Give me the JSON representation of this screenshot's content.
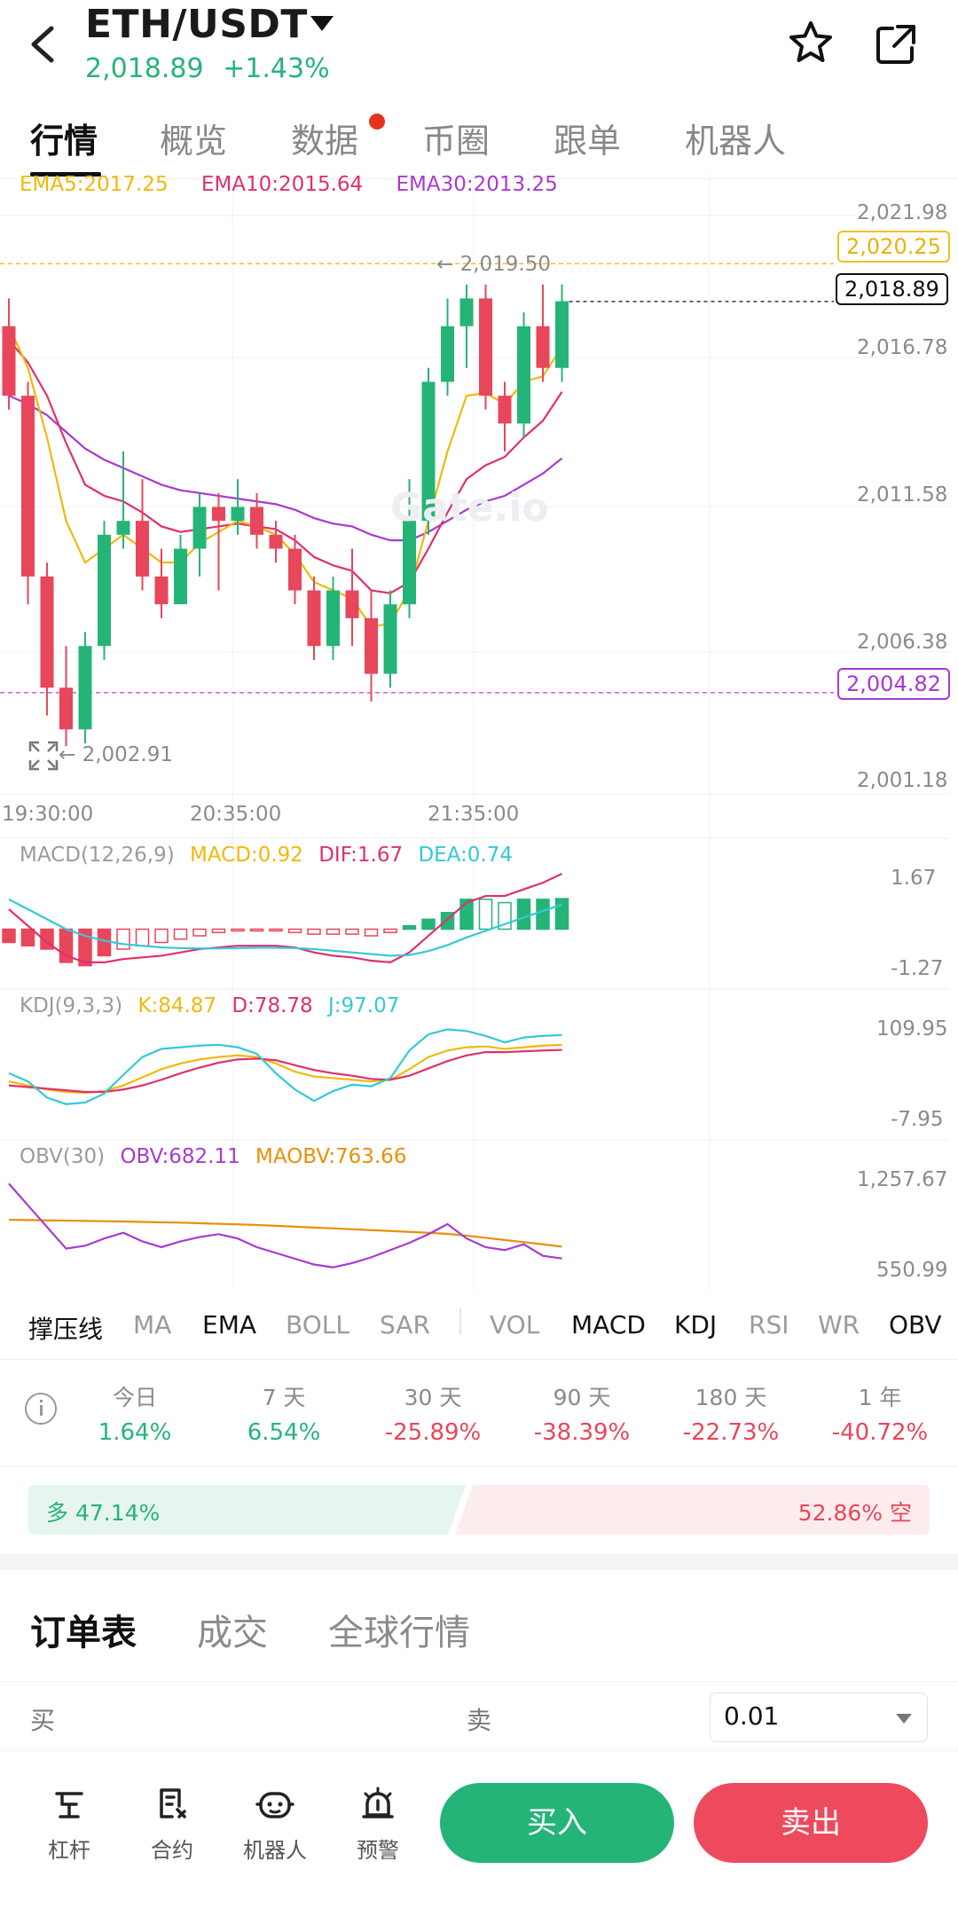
{
  "header": {
    "pair": "ETH/USDT",
    "price": "2,018.89",
    "change": "+1.43%"
  },
  "tabs": [
    {
      "label": "行情",
      "active": true
    },
    {
      "label": "概览"
    },
    {
      "label": "数据",
      "badge": true
    },
    {
      "label": "币圈"
    },
    {
      "label": "跟单"
    },
    {
      "label": "机器人"
    }
  ],
  "ema_legend": {
    "ema5": "EMA5:2017.25",
    "ema10": "EMA10:2015.64",
    "ema30": "EMA30:2013.25"
  },
  "price_axis": [
    "2,021.98",
    "2,016.78",
    "2,011.58",
    "2,006.38",
    "2,001.18"
  ],
  "tags": {
    "alert_high": "2,020.25",
    "last": "2,018.89",
    "alert_low": "2,004.82",
    "high_marker": "← 2,019.50",
    "low_marker": "← 2,002.91"
  },
  "time_axis": [
    "19:30:00",
    "20:35:00",
    "21:35:00"
  ],
  "watermark": "Gate.io",
  "macd": {
    "label": "MACD(12,26,9)",
    "macd": "MACD:0.92",
    "dif": "DIF:1.67",
    "dea": "DEA:0.74",
    "top": "1.67",
    "bottom": "-1.27"
  },
  "kdj": {
    "label": "KDJ(9,3,3)",
    "k": "K:84.87",
    "d": "D:78.78",
    "j": "J:97.07",
    "top": "109.95",
    "bottom": "-7.95"
  },
  "obv": {
    "label": "OBV(30)",
    "obv": "OBV:682.11",
    "maobv": "MAOBV:763.66",
    "top": "1,257.67",
    "bottom": "550.99"
  },
  "indicators": [
    {
      "label": "撑压线",
      "on": true
    },
    {
      "label": "MA"
    },
    {
      "label": "EMA",
      "on": true
    },
    {
      "label": "BOLL"
    },
    {
      "label": "SAR"
    },
    {
      "label": "VOL"
    },
    {
      "label": "MACD",
      "on": true
    },
    {
      "label": "KDJ",
      "on": true
    },
    {
      "label": "RSI"
    },
    {
      "label": "WR"
    },
    {
      "label": "OBV",
      "on": true
    }
  ],
  "stats": [
    {
      "period": "今日",
      "value": "1.64%",
      "up": true
    },
    {
      "period": "7 天",
      "value": "6.54%",
      "up": true
    },
    {
      "period": "30 天",
      "value": "-25.89%"
    },
    {
      "period": "90 天",
      "value": "-38.39%"
    },
    {
      "period": "180 天",
      "value": "-22.73%"
    },
    {
      "period": "1 年",
      "value": "-40.72%"
    }
  ],
  "long_short": {
    "long": "多 47.14%",
    "short": "52.86% 空",
    "long_pct": 47.14
  },
  "order_tabs": [
    "订单表",
    "成交",
    "全球行情"
  ],
  "orderbook": {
    "buy": "买",
    "sell": "卖",
    "precision": "0.01"
  },
  "bottom_bar": {
    "leverage": "杠杆",
    "contract": "合约",
    "robot": "机器人",
    "alert": "预警",
    "buy": "买入",
    "sell": "卖出"
  },
  "colors": {
    "up": "#25b478",
    "down": "#e8465a",
    "ema5": "#f0b90b",
    "ema10": "#e0306e",
    "ema30": "#a83ad0",
    "dea": "#33c9d6"
  },
  "chart_data": {
    "type": "candlestick",
    "x_labels": [
      "19:30:00",
      "20:35:00",
      "21:35:00"
    ],
    "ylim": [
      2001.18,
      2021.98
    ],
    "candles": [
      [
        2018.0,
        2019.0,
        2015.0,
        2015.5
      ],
      [
        2015.5,
        2016.0,
        2008.0,
        2009.0
      ],
      [
        2009.0,
        2009.5,
        2004.0,
        2005.0
      ],
      [
        2005.0,
        2006.5,
        2002.9,
        2003.5
      ],
      [
        2003.5,
        2007.0,
        2003.0,
        2006.5
      ],
      [
        2006.5,
        2011.0,
        2006.0,
        2010.5
      ],
      [
        2010.5,
        2013.5,
        2010.0,
        2011.0
      ],
      [
        2011.0,
        2012.5,
        2008.5,
        2009.0
      ],
      [
        2009.0,
        2010.0,
        2007.5,
        2008.0
      ],
      [
        2008.0,
        2010.5,
        2008.0,
        2010.0
      ],
      [
        2010.0,
        2012.0,
        2009.0,
        2011.5
      ],
      [
        2011.5,
        2012.0,
        2008.5,
        2011.0
      ],
      [
        2011.0,
        2012.5,
        2010.5,
        2011.5
      ],
      [
        2011.5,
        2012.0,
        2010.0,
        2010.5
      ],
      [
        2010.5,
        2011.0,
        2009.5,
        2010.0
      ],
      [
        2010.0,
        2010.5,
        2008.0,
        2008.5
      ],
      [
        2008.5,
        2009.0,
        2006.0,
        2006.5
      ],
      [
        2006.5,
        2009.0,
        2006.0,
        2008.5
      ],
      [
        2008.5,
        2010.0,
        2006.5,
        2007.5
      ],
      [
        2007.5,
        2008.5,
        2004.5,
        2005.5
      ],
      [
        2005.5,
        2008.5,
        2005.0,
        2008.0
      ],
      [
        2008.0,
        2012.5,
        2007.5,
        2011.0
      ],
      [
        2011.0,
        2016.5,
        2010.5,
        2016.0
      ],
      [
        2016.0,
        2019.0,
        2015.5,
        2018.0
      ],
      [
        2018.0,
        2019.5,
        2016.5,
        2019.0
      ],
      [
        2019.0,
        2019.5,
        2015.0,
        2015.5
      ],
      [
        2015.5,
        2016.0,
        2013.5,
        2014.5
      ],
      [
        2014.5,
        2018.5,
        2014.0,
        2018.0
      ],
      [
        2018.0,
        2019.5,
        2016.0,
        2016.5
      ],
      [
        2016.5,
        2019.5,
        2016.0,
        2018.9
      ]
    ],
    "ema5": [
      2018.0,
      2016.5,
      2014.0,
      2011.0,
      2009.5,
      2010.0,
      2010.5,
      2010.0,
      2009.5,
      2009.5,
      2010.2,
      2010.6,
      2011.0,
      2010.8,
      2010.5,
      2009.8,
      2008.8,
      2008.5,
      2008.2,
      2007.2,
      2007.3,
      2008.5,
      2011.0,
      2013.5,
      2015.5,
      2015.6,
      2015.2,
      2016.0,
      2016.2,
      2017.25
    ],
    "ema10": [
      2017.5,
      2016.7,
      2015.5,
      2013.8,
      2012.3,
      2011.9,
      2011.7,
      2011.3,
      2010.8,
      2010.6,
      2010.7,
      2010.8,
      2010.9,
      2010.8,
      2010.7,
      2010.3,
      2009.7,
      2009.4,
      2009.2,
      2008.5,
      2008.4,
      2008.8,
      2010.0,
      2011.3,
      2012.5,
      2013.0,
      2013.3,
      2014.0,
      2014.6,
      2015.64
    ],
    "ema30": [
      2015.5,
      2015.2,
      2014.8,
      2014.2,
      2013.6,
      2013.2,
      2012.9,
      2012.6,
      2012.3,
      2012.1,
      2012.0,
      2011.9,
      2011.8,
      2011.7,
      2011.6,
      2011.4,
      2011.1,
      2010.9,
      2010.8,
      2010.5,
      2010.3,
      2010.3,
      2010.6,
      2011.0,
      2011.4,
      2011.7,
      2011.9,
      2012.3,
      2012.7,
      2013.25
    ],
    "macd_hist": [
      -0.4,
      -0.5,
      -0.6,
      -1.0,
      -1.1,
      -0.8,
      -0.6,
      -0.5,
      -0.4,
      -0.3,
      -0.2,
      -0.1,
      -0.05,
      -0.05,
      -0.05,
      -0.1,
      -0.15,
      -0.15,
      -0.15,
      -0.2,
      -0.1,
      0.1,
      0.3,
      0.5,
      0.9,
      0.9,
      0.8,
      0.9,
      0.9,
      0.92
    ],
    "macd_dif": [
      0.6,
      0.1,
      -0.4,
      -0.8,
      -1.0,
      -1.0,
      -0.9,
      -0.85,
      -0.8,
      -0.7,
      -0.6,
      -0.55,
      -0.5,
      -0.5,
      -0.5,
      -0.55,
      -0.7,
      -0.8,
      -0.85,
      -0.95,
      -1.0,
      -0.7,
      -0.2,
      0.3,
      0.8,
      1.0,
      1.0,
      1.2,
      1.4,
      1.67
    ],
    "macd_dea": [
      0.9,
      0.6,
      0.3,
      0.0,
      -0.2,
      -0.35,
      -0.45,
      -0.5,
      -0.55,
      -0.57,
      -0.58,
      -0.58,
      -0.57,
      -0.56,
      -0.56,
      -0.57,
      -0.6,
      -0.65,
      -0.7,
      -0.75,
      -0.8,
      -0.78,
      -0.66,
      -0.48,
      -0.25,
      -0.05,
      0.15,
      0.35,
      0.55,
      0.74
    ],
    "kdj_k": [
      40,
      35,
      30,
      27,
      26,
      28,
      35,
      45,
      55,
      62,
      67,
      70,
      72,
      70,
      62,
      52,
      46,
      44,
      42,
      40,
      42,
      55,
      70,
      78,
      82,
      83,
      80,
      82,
      84,
      84.87
    ],
    "kdj_d": [
      35,
      33,
      31,
      29,
      27,
      27,
      30,
      35,
      42,
      50,
      57,
      63,
      67,
      68,
      66,
      60,
      54,
      50,
      47,
      43,
      42,
      47,
      56,
      65,
      72,
      76,
      76,
      77,
      78,
      78.78
    ],
    "kdj_j": [
      50,
      40,
      20,
      12,
      14,
      25,
      48,
      70,
      80,
      82,
      84,
      85,
      82,
      74,
      50,
      30,
      16,
      28,
      36,
      34,
      44,
      78,
      98,
      104,
      102,
      96,
      88,
      94,
      96,
      97.07
    ],
    "obv": [
      1200,
      1050,
      900,
      750,
      770,
      820,
      860,
      800,
      760,
      800,
      830,
      850,
      820,
      760,
      720,
      680,
      640,
      620,
      650,
      690,
      740,
      790,
      850,
      920,
      820,
      760,
      740,
      780,
      700,
      682.11
    ],
    "maobv": [
      950,
      948,
      946,
      944,
      942,
      940,
      938,
      935,
      932,
      930,
      926,
      922,
      918,
      914,
      908,
      902,
      896,
      890,
      884,
      878,
      872,
      866,
      860,
      852,
      840,
      825,
      810,
      795,
      780,
      763.66
    ]
  }
}
